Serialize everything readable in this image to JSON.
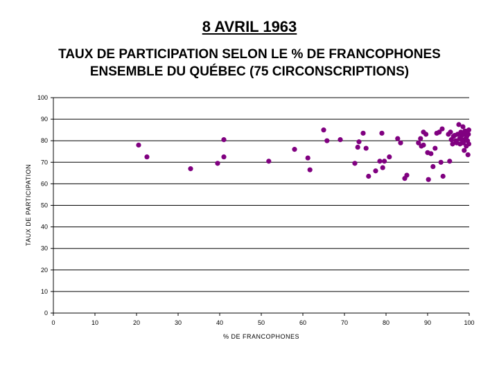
{
  "header": {
    "title": "8 AVRIL 1963",
    "subtitle_line1": "TAUX DE PARTICIPATION SELON LE % DE FRANCOPHONES",
    "subtitle_line2": "ENSEMBLE DU QUÉBEC (75 CIRCONSCRIPTIONS)"
  },
  "chart_data": {
    "type": "scatter",
    "title": "",
    "xlabel": "% DE FRANCOPHONES",
    "ylabel": "TAUX DE PARTICIPATION",
    "xlim": [
      0,
      100
    ],
    "ylim": [
      0,
      100
    ],
    "xticks": [
      0,
      10,
      20,
      30,
      40,
      50,
      60,
      70,
      80,
      90,
      100
    ],
    "yticks": [
      0,
      10,
      20,
      30,
      40,
      50,
      60,
      70,
      80,
      90,
      100
    ],
    "grid": "horizontal",
    "marker_color": "#800080",
    "points": [
      [
        20.5,
        78
      ],
      [
        22.5,
        72.5
      ],
      [
        33,
        67
      ],
      [
        39.5,
        69.5
      ],
      [
        41,
        72.5
      ],
      [
        41,
        80.5
      ],
      [
        51.8,
        70.5
      ],
      [
        58,
        76
      ],
      [
        61.2,
        72
      ],
      [
        61.7,
        66.5
      ],
      [
        65,
        85
      ],
      [
        65.8,
        80
      ],
      [
        69,
        80.5
      ],
      [
        72.5,
        69.5
      ],
      [
        73.2,
        77
      ],
      [
        73.5,
        79.5
      ],
      [
        74.5,
        83.5
      ],
      [
        75.2,
        76.5
      ],
      [
        75.8,
        63.5
      ],
      [
        77.5,
        66
      ],
      [
        78.5,
        70.5
      ],
      [
        79,
        83.5
      ],
      [
        79.2,
        67.5
      ],
      [
        79.6,
        70.5
      ],
      [
        80.8,
        72.5
      ],
      [
        82.8,
        81
      ],
      [
        83.5,
        79
      ],
      [
        84.5,
        62.5
      ],
      [
        85,
        64
      ],
      [
        87.8,
        79
      ],
      [
        88.3,
        81
      ],
      [
        88.5,
        77.5
      ],
      [
        89,
        78
      ],
      [
        89,
        84
      ],
      [
        89.6,
        83
      ],
      [
        90,
        74.5
      ],
      [
        90.2,
        62
      ],
      [
        90.8,
        74
      ],
      [
        91.3,
        68
      ],
      [
        91.8,
        76.5
      ],
      [
        92.2,
        83.5
      ],
      [
        92.8,
        84
      ],
      [
        93.2,
        70
      ],
      [
        93.5,
        85.5
      ],
      [
        93.7,
        63.5
      ],
      [
        95,
        83
      ],
      [
        95.3,
        70.5
      ],
      [
        95.5,
        84
      ],
      [
        95.7,
        80.5
      ],
      [
        96,
        78.5
      ],
      [
        96.2,
        82
      ],
      [
        96.5,
        82.5
      ],
      [
        96.8,
        80
      ],
      [
        97,
        79
      ],
      [
        97.2,
        83
      ],
      [
        97.5,
        87.5
      ],
      [
        97.7,
        81
      ],
      [
        97.8,
        78.5
      ],
      [
        98,
        84
      ],
      [
        98.2,
        82.5
      ],
      [
        98.3,
        80.5
      ],
      [
        98.5,
        86.5
      ],
      [
        98.6,
        79
      ],
      [
        98.7,
        83
      ],
      [
        98.8,
        75.5
      ],
      [
        99,
        84.5
      ],
      [
        99.2,
        81
      ],
      [
        99.3,
        77.5
      ],
      [
        99.4,
        82
      ],
      [
        99.5,
        84
      ],
      [
        99.6,
        80
      ],
      [
        99.7,
        73.5
      ],
      [
        99.8,
        83
      ],
      [
        99.9,
        78.5
      ],
      [
        99.9,
        85
      ]
    ]
  }
}
